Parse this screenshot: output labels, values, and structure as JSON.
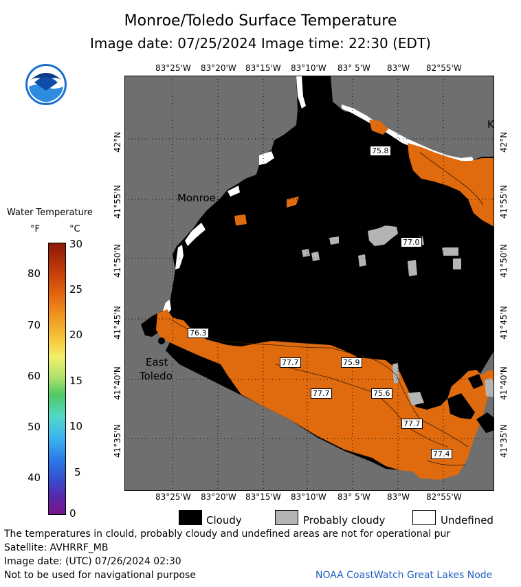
{
  "header": {
    "title": "Monroe/Toledo Surface Temperature",
    "subtitle": "Image date: 07/25/2024     Image time: 22:30 (EDT)"
  },
  "logo": {
    "text": "NOAA",
    "icon": "noaa-logo-icon"
  },
  "map": {
    "top_ticks": [
      "83°25'W",
      "83°20'W",
      "83°15'W",
      "83°10'W",
      "83° 5'W",
      "83°W",
      "82°55'W"
    ],
    "bottom_ticks": [
      "83°25'W",
      "83°20'W",
      "83°15'W",
      "83°10'W",
      "83° 5'W",
      "83°W",
      "82°55'W"
    ],
    "lat_ticks": [
      "42°N",
      "41°55'N",
      "41°50'N",
      "41°45'N",
      "41°40'N",
      "41°35'N"
    ],
    "places": {
      "monroe": "Monroe",
      "east": "East",
      "toledo": "Toledo",
      "k": "K"
    },
    "values": [
      "75.8",
      "77.0",
      "76.3",
      "77.7",
      "75.9",
      "77.7",
      "75.6",
      "77.7",
      "77.4"
    ],
    "colors": {
      "land": "#6f6f6f",
      "cloud": "#000000",
      "warm": "#e06a0e",
      "probably_cloudy": "#b4b4b4",
      "undefined": "#ffffff"
    }
  },
  "colorbar": {
    "title": "Water Temperature",
    "unit_f": "°F",
    "unit_c": "°C",
    "f_ticks": [
      "80",
      "70",
      "60",
      "50",
      "40"
    ],
    "c_ticks": [
      "30",
      "25",
      "20",
      "15",
      "10",
      "5",
      "0"
    ]
  },
  "legend": {
    "cloudy": "Cloudy",
    "probably_cloudy": "Probably cloudy",
    "undefined": "Undefined"
  },
  "footer": {
    "line1": "The temperatures in clould, probably cloudy and undefined areas are not for operational pur",
    "line2": "Satellite: AVHRRF_MB",
    "line3": "Image date: (UTC) 07/26/2024  02:30",
    "line4": "Not to be used for navigational purpose",
    "credit": "NOAA CoastWatch Great Lakes Node"
  }
}
